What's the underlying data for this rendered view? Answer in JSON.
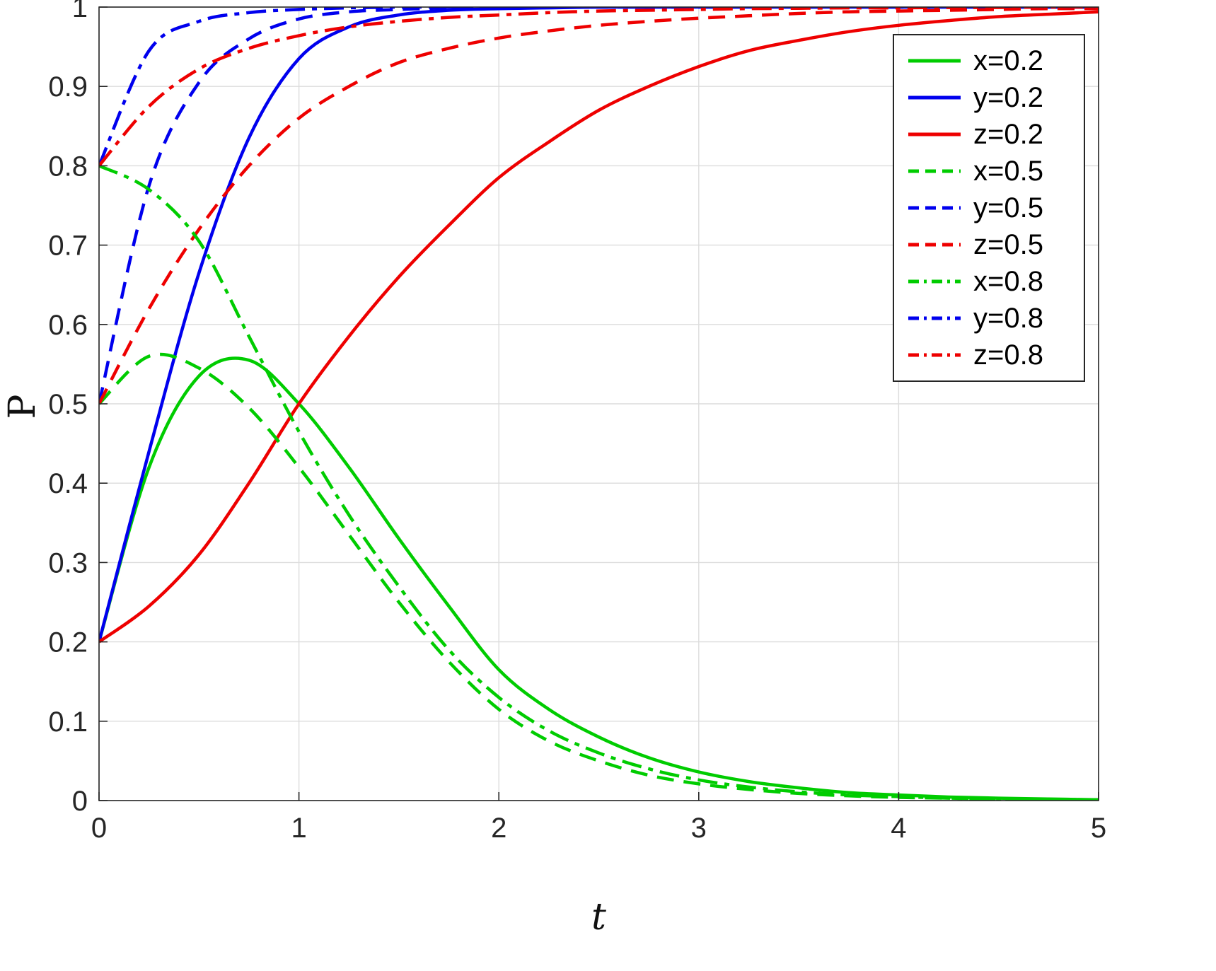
{
  "figure": {
    "background": "#ffffff",
    "axis_color": "#262626",
    "grid_color": "#dcdcdc"
  },
  "axes": {
    "xlabel": "t",
    "ylabel": "P",
    "x_tick_labels": [
      "0",
      "1",
      "2",
      "3",
      "4",
      "5"
    ],
    "y_tick_labels": [
      "0",
      "0.1",
      "0.2",
      "0.3",
      "0.4",
      "0.5",
      "0.6",
      "0.7",
      "0.8",
      "0.9",
      "1"
    ]
  },
  "chart_data": {
    "type": "line",
    "title": "",
    "xlabel": "t",
    "ylabel": "P",
    "xlim": [
      0,
      5
    ],
    "ylim": [
      0,
      1
    ],
    "grid": true,
    "legend_position": "top-right",
    "x_ticks": [
      0,
      1,
      2,
      3,
      4,
      5
    ],
    "y_ticks": [
      0,
      0.1,
      0.2,
      0.3,
      0.4,
      0.5,
      0.6,
      0.7,
      0.8,
      0.9,
      1
    ],
    "x": [
      0,
      0.25,
      0.5,
      0.75,
      1,
      1.25,
      1.5,
      1.75,
      2,
      2.25,
      2.5,
      2.75,
      3,
      3.25,
      3.5,
      3.75,
      4,
      4.25,
      4.5,
      4.75,
      5
    ],
    "series": [
      {
        "label": "x=0.2",
        "color": "#00cc00",
        "style": "solid",
        "values": [
          0.2,
          0.42,
          0.535,
          0.555,
          0.5,
          0.42,
          0.33,
          0.245,
          0.165,
          0.115,
          0.08,
          0.054,
          0.036,
          0.024,
          0.016,
          0.01,
          0.007,
          0.0045,
          0.003,
          0.002,
          0.001
        ]
      },
      {
        "label": "y=0.2",
        "color": "#0000ee",
        "style": "solid",
        "values": [
          0.2,
          0.44,
          0.665,
          0.835,
          0.935,
          0.975,
          0.99,
          0.996,
          0.998,
          0.999,
          1,
          1,
          1,
          1,
          1,
          1,
          1,
          1,
          1,
          1,
          1
        ]
      },
      {
        "label": "z=0.2",
        "color": "#ee0000",
        "style": "solid",
        "values": [
          0.2,
          0.245,
          0.31,
          0.4,
          0.5,
          0.585,
          0.66,
          0.725,
          0.785,
          0.83,
          0.87,
          0.9,
          0.925,
          0.945,
          0.958,
          0.969,
          0.977,
          0.983,
          0.988,
          0.991,
          0.994
        ]
      },
      {
        "label": "x=0.5",
        "color": "#00cc00",
        "style": "dashed",
        "values": [
          0.5,
          0.56,
          0.545,
          0.495,
          0.42,
          0.335,
          0.25,
          0.175,
          0.115,
          0.075,
          0.05,
          0.032,
          0.021,
          0.014,
          0.009,
          0.006,
          0.004,
          0.003,
          0.002,
          0.0015,
          0.001
        ]
      },
      {
        "label": "y=0.5",
        "color": "#0000ee",
        "style": "dashed",
        "values": [
          0.5,
          0.775,
          0.905,
          0.96,
          0.985,
          0.994,
          0.997,
          0.999,
          1,
          1,
          1,
          1,
          1,
          1,
          1,
          1,
          1,
          1,
          1,
          1,
          1
        ]
      },
      {
        "label": "z=0.5",
        "color": "#ee0000",
        "style": "dashed",
        "values": [
          0.5,
          0.62,
          0.72,
          0.8,
          0.86,
          0.9,
          0.93,
          0.948,
          0.961,
          0.97,
          0.977,
          0.982,
          0.986,
          0.989,
          0.992,
          0.994,
          0.995,
          0.996,
          0.997,
          0.998,
          0.998
        ]
      },
      {
        "label": "x=0.8",
        "color": "#00cc00",
        "style": "dashdot",
        "values": [
          0.8,
          0.77,
          0.705,
          0.585,
          0.465,
          0.36,
          0.27,
          0.19,
          0.13,
          0.088,
          0.06,
          0.04,
          0.026,
          0.017,
          0.011,
          0.007,
          0.005,
          0.003,
          0.002,
          0.0015,
          0.001
        ]
      },
      {
        "label": "y=0.8",
        "color": "#0000ee",
        "style": "dashdot",
        "values": [
          0.8,
          0.945,
          0.982,
          0.993,
          0.997,
          0.999,
          1,
          1,
          1,
          1,
          1,
          1,
          1,
          1,
          1,
          1,
          1,
          1,
          1,
          1,
          1
        ]
      },
      {
        "label": "z=0.8",
        "color": "#ee0000",
        "style": "dashdot",
        "values": [
          0.8,
          0.875,
          0.922,
          0.948,
          0.964,
          0.975,
          0.982,
          0.987,
          0.99,
          0.993,
          0.995,
          0.996,
          0.997,
          0.998,
          0.9985,
          0.999,
          0.999,
          0.9995,
          0.9995,
          1,
          1
        ]
      }
    ]
  }
}
